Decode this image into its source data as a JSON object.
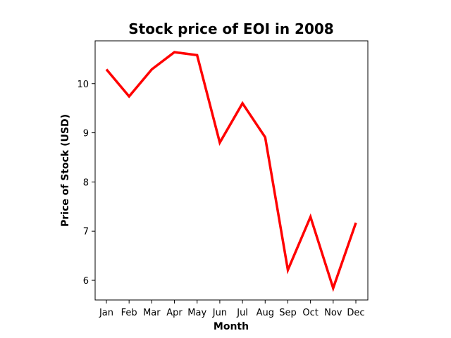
{
  "chart_data": {
    "type": "line",
    "title": "Stock price of EOI in 2008",
    "xlabel": "Month",
    "ylabel": "Price of Stock (USD)",
    "categories": [
      "Jan",
      "Feb",
      "Mar",
      "Apr",
      "May",
      "Jun",
      "Jul",
      "Aug",
      "Sep",
      "Oct",
      "Nov",
      "Dec"
    ],
    "series": [
      {
        "values": [
          10.29,
          9.74,
          10.29,
          10.64,
          10.58,
          8.8,
          9.6,
          8.91,
          6.21,
          7.29,
          5.84,
          7.17
        ],
        "color": "#ff0000"
      }
    ],
    "ylim": [
      5.6,
      10.87
    ],
    "yticks": [
      6,
      7,
      8,
      9,
      10
    ],
    "grid": false,
    "legend": "none"
  }
}
